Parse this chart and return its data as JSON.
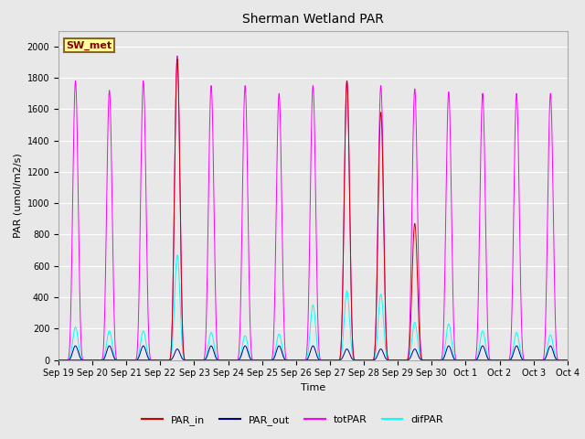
{
  "title": "Sherman Wetland PAR",
  "ylabel": "PAR (umol/m2/s)",
  "xlabel": "Time",
  "ylim": [
    0,
    2100
  ],
  "fig_facecolor": "#e8e8e8",
  "plot_bg_color": "#e8e8e8",
  "legend_label": "SW_met",
  "legend_bg": "#ffff99",
  "legend_edge": "#8b6914",
  "line_colors": {
    "PAR_in": "#cc0000",
    "PAR_out": "#00008b",
    "totPAR": "#ff00ff",
    "difPAR": "#00ffff"
  },
  "tick_labels": [
    "Sep 19",
    "Sep 20",
    "Sep 21",
    "Sep 22",
    "Sep 23",
    "Sep 24",
    "Sep 25",
    "Sep 26",
    "Sep 27",
    "Sep 28",
    "Sep 29",
    "Sep 30",
    "Oct 1",
    "Oct 2",
    "Oct 3",
    "Oct 4"
  ],
  "n_days": 15,
  "samples_per_day": 288,
  "peak_totPAR": [
    1780,
    1720,
    1780,
    1940,
    1750,
    1750,
    1700,
    1750,
    1780,
    1750,
    1730,
    1710,
    1700,
    1700,
    1700
  ],
  "peak_PAR_in": [
    0,
    0,
    0,
    1920,
    0,
    0,
    0,
    0,
    1780,
    1580,
    870,
    0,
    0,
    0,
    0
  ],
  "peak_PAR_out": [
    90,
    90,
    90,
    70,
    90,
    90,
    90,
    90,
    70,
    70,
    70,
    90,
    90,
    90,
    90
  ],
  "peak_difPAR": [
    210,
    185,
    185,
    670,
    175,
    155,
    165,
    350,
    440,
    420,
    240,
    230,
    185,
    175,
    160
  ],
  "title_fontsize": 10,
  "axis_fontsize": 8,
  "tick_fontsize": 7
}
